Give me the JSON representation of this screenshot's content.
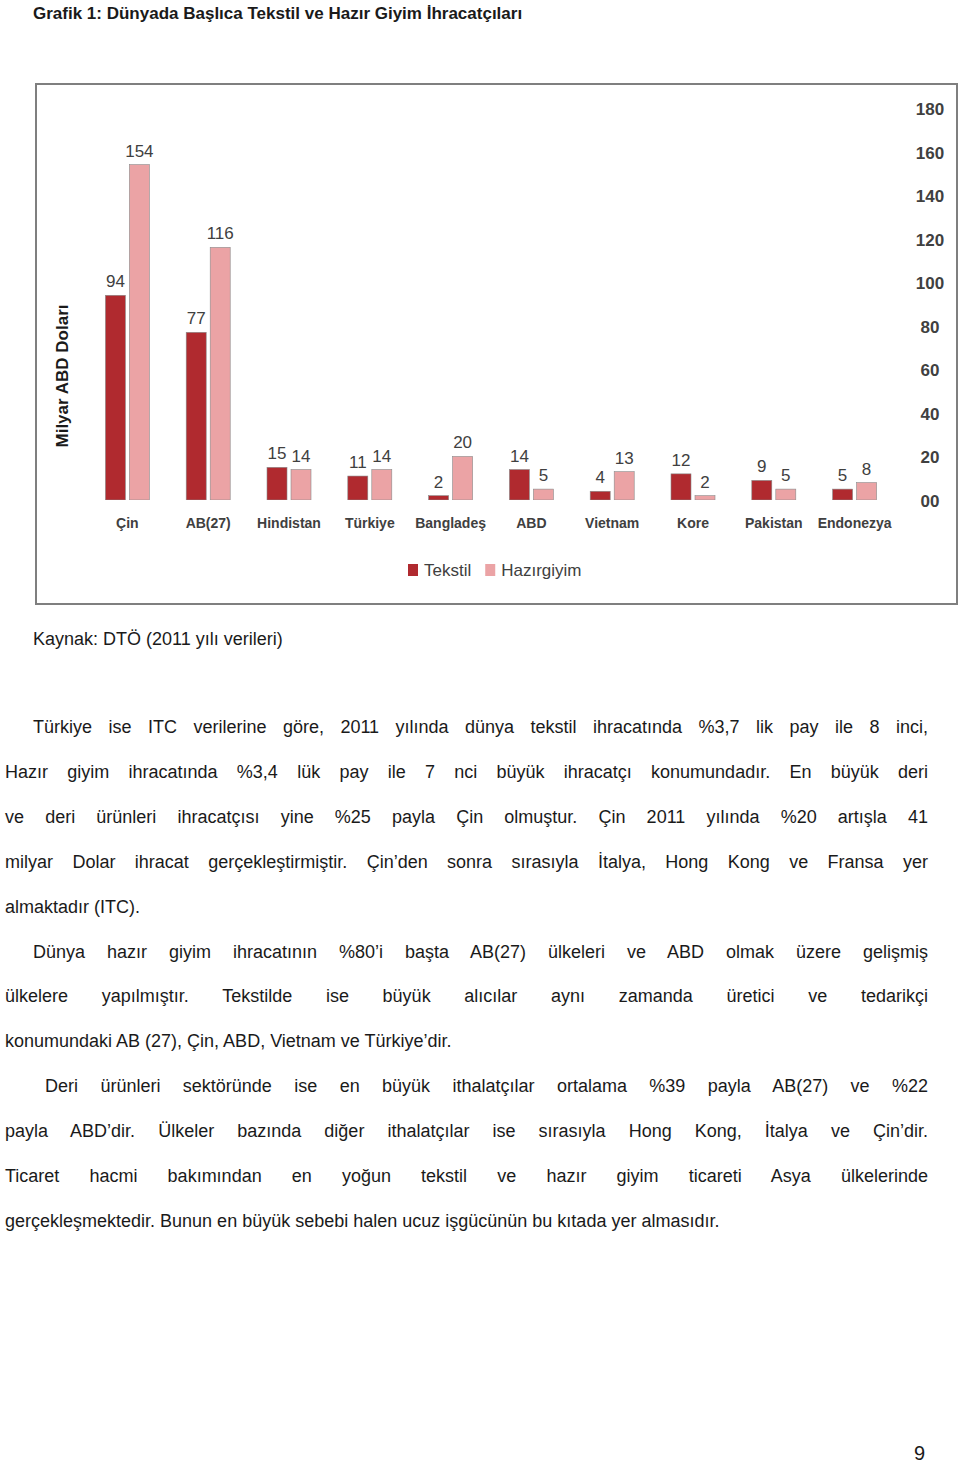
{
  "chart_data": {
    "type": "bar",
    "title": "Grafik 1: Dünyada Başlıca Tekstil ve Hazır Giyim İhracatçıları",
    "y_label": "Milyar ABD Doları",
    "categories": [
      "Çin",
      "AB(27)",
      "Hindistan",
      "Türkiye",
      "Bangladeş",
      "ABD",
      "Vietnam",
      "Kore",
      "Pakistan",
      "Endonezya"
    ],
    "series": [
      {
        "name": "Tekstil",
        "color": "#b02a2f",
        "values": [
          94,
          77,
          15,
          11,
          2,
          14,
          4,
          12,
          9,
          5
        ]
      },
      {
        "name": "Hazırgiyim",
        "color": "#eba3a5",
        "values": [
          154,
          116,
          14,
          14,
          20,
          5,
          13,
          2,
          5,
          8
        ]
      }
    ],
    "ylim": [
      0,
      180
    ],
    "yticks": [
      {
        "value": 0,
        "label": "00"
      },
      20,
      40,
      60,
      80,
      100,
      120,
      140,
      160,
      180
    ],
    "grid": false,
    "legend": "bottom",
    "data_labels": true
  },
  "source": "Kaynak: DTÖ (2011 yılı verileri)",
  "paragraphs": [
    {
      "lines": [
        "Türkiye ise ITC verilerine göre, 2011 yılında dünya tekstil ihracatında %3,7 lik pay ile 8 inci,",
        "Hazır giyim ihracatında %3,4 lük pay ile 7 nci büyük ihracatçı konumundadır. En büyük deri",
        "ve deri ürünleri ihracatçısı yine %25 payla Çin olmuştur. Çin 2011 yılında %20 artışla 41",
        "milyar Dolar ihracat gerçekleştirmiştir. Çin’den sonra sırasıyla İtalya, Hong Kong ve Fransa yer",
        "almaktadır (ITC)."
      ]
    },
    {
      "lines": [
        "Dünya hazır giyim ihracatının %80’i başta AB(27) ülkeleri ve ABD olmak üzere gelişmiş",
        "ülkelere yapılmıştır. Tekstilde ise büyük alıcılar aynı zamanda üretici ve tedarikçi",
        "konumundaki AB (27), Çin, ABD, Vietnam ve Türkiye’dir."
      ]
    },
    {
      "lines": [
        "Deri ürünleri sektöründe ise en büyük ithalatçılar ortalama %39 payla AB(27) ve %22",
        "payla ABD’dir. Ülkeler bazında diğer ithalatçılar ise sırasıyla Hong Kong, İtalya ve Çin’dir.",
        "Ticaret hacmi bakımından en yoğun tekstil ve hazır giyim ticareti Asya ülkelerinde",
        "gerçekleşmektedir. Bunun en büyük sebebi halen ucuz işgücünün bu kıtada yer almasıdır."
      ]
    }
  ],
  "page_number": "9"
}
